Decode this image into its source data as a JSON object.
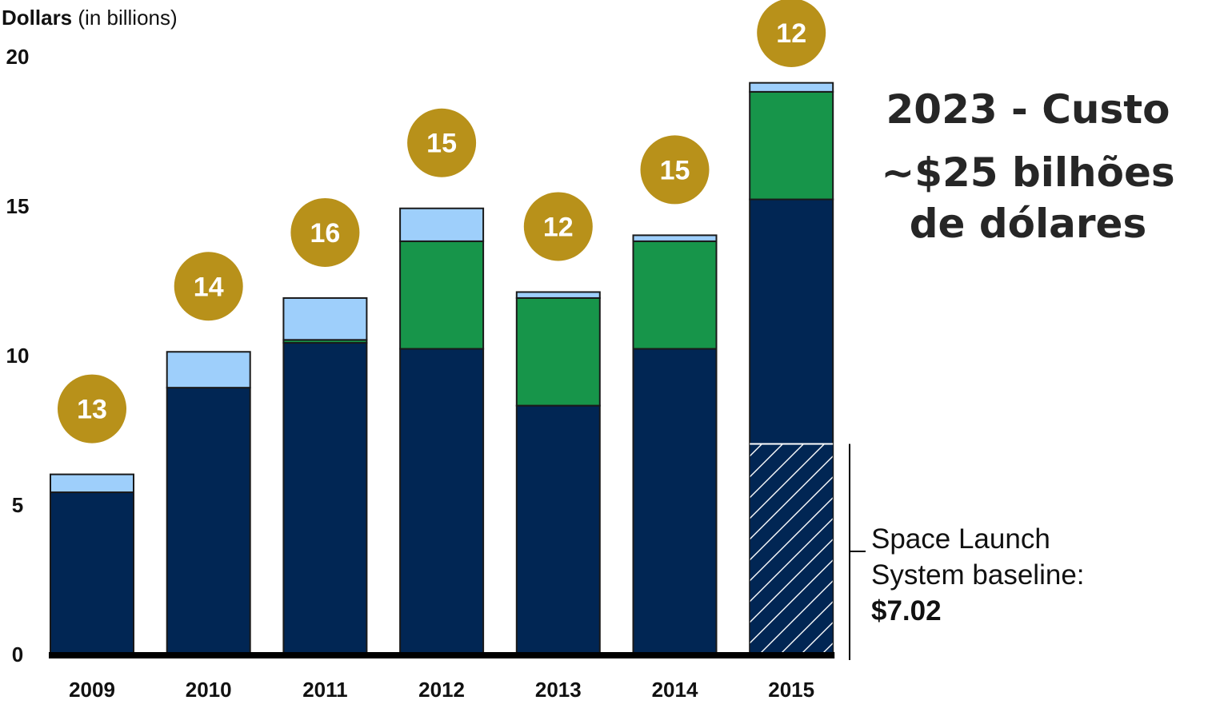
{
  "chart_data": {
    "type": "bar",
    "stacked": true,
    "y_axis_title_bold": "Dollars",
    "y_axis_title_rest": " (in billions)",
    "ylim": [
      0,
      20
    ],
    "y_ticks": [
      "0",
      "5",
      "10",
      "15",
      "20"
    ],
    "categories": [
      "2009",
      "2010",
      "2011",
      "2012",
      "2013",
      "2014",
      "2015"
    ],
    "series": [
      {
        "values": [
          5.4,
          8.9,
          10.4,
          10.2,
          8.3,
          10.2,
          15.2
        ],
        "color": "#012654"
      },
      {
        "values": [
          0,
          0,
          0.1,
          3.6,
          3.6,
          3.6,
          3.6
        ],
        "color": "#17954a"
      },
      {
        "values": [
          0.6,
          1.2,
          1.4,
          1.1,
          0.2,
          0.2,
          0.3
        ],
        "color": "#9ecffb"
      }
    ],
    "badges": [
      "13",
      "14",
      "16",
      "15",
      "12",
      "15",
      "12"
    ],
    "badge_color": "#b8911a",
    "hatched_segment": {
      "category": "2015",
      "from": 0,
      "to": 7.02
    },
    "annotation": {
      "line1": "Space Launch",
      "line2": "System baseline:",
      "value": "$7.02"
    },
    "cost_note": {
      "line1": "2023 - Custo",
      "line2": "~$25 bilhões",
      "line3": "de dólares"
    }
  }
}
